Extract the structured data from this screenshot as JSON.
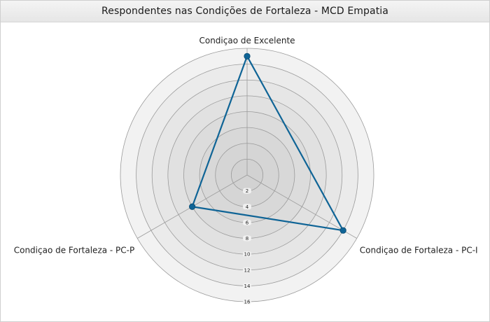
{
  "chart_data": {
    "type": "radar",
    "title": "Respondentes nas Condições de Fortaleza - MCD Empatia",
    "categories": [
      "Condiçao de Excelente",
      "Condiçao de Fortaleza - PC-I",
      "Condiçao de Fortaleza - PC-P"
    ],
    "series": [
      {
        "values": [
          15,
          14,
          8
        ],
        "color": "#0f6496"
      }
    ],
    "r_ticks": [
      "2",
      "4",
      "6",
      "8",
      "10",
      "12",
      "14",
      "16"
    ],
    "r_range": [
      0,
      16
    ],
    "grid": true,
    "legend": "none"
  }
}
